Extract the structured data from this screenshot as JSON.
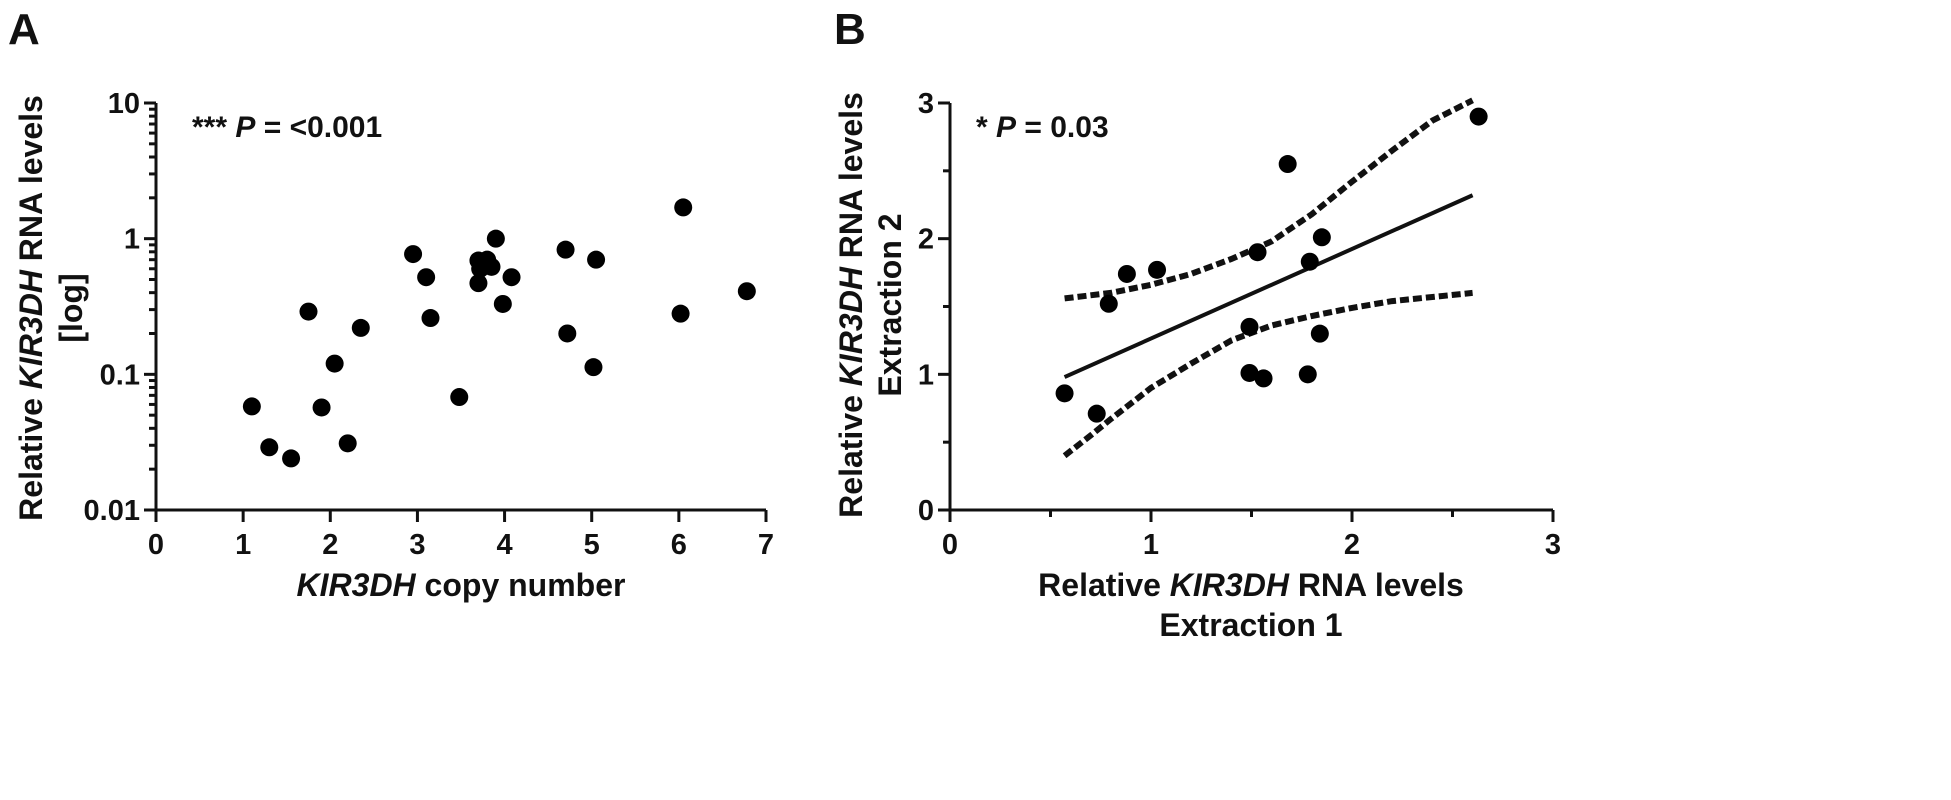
{
  "chart_data": [
    {
      "panel_label": "A",
      "type": "scatter",
      "xlabel": {
        "italic": "KIR3DH",
        "rest": " copy number"
      },
      "ylabel_line1": {
        "pre": "Relative ",
        "italic": "KIR3DH",
        "post": " RNA levels"
      },
      "ylabel_line2": "[log]",
      "x_ticks": [
        "0",
        "1",
        "2",
        "3",
        "4",
        "5",
        "6",
        "7"
      ],
      "y_ticks": [
        "0.01",
        "0.1",
        "1",
        "10"
      ],
      "xlim": [
        0,
        7
      ],
      "ylim": [
        0.01,
        10
      ],
      "y_scale": "log",
      "annotation": {
        "stars": "***",
        "p": "P",
        "rest": " = <0.001"
      },
      "points": [
        {
          "x": 1.1,
          "y": 0.058
        },
        {
          "x": 1.3,
          "y": 0.029
        },
        {
          "x": 1.55,
          "y": 0.024
        },
        {
          "x": 1.75,
          "y": 0.29
        },
        {
          "x": 1.9,
          "y": 0.057
        },
        {
          "x": 2.05,
          "y": 0.12
        },
        {
          "x": 2.2,
          "y": 0.031
        },
        {
          "x": 2.35,
          "y": 0.22
        },
        {
          "x": 2.95,
          "y": 0.77
        },
        {
          "x": 3.1,
          "y": 0.52
        },
        {
          "x": 3.15,
          "y": 0.26
        },
        {
          "x": 3.48,
          "y": 0.068
        },
        {
          "x": 3.7,
          "y": 0.69
        },
        {
          "x": 3.72,
          "y": 0.6
        },
        {
          "x": 3.7,
          "y": 0.47
        },
        {
          "x": 3.8,
          "y": 0.7
        },
        {
          "x": 3.85,
          "y": 0.62
        },
        {
          "x": 3.9,
          "y": 1.0
        },
        {
          "x": 3.98,
          "y": 0.33
        },
        {
          "x": 4.08,
          "y": 0.52
        },
        {
          "x": 4.7,
          "y": 0.83
        },
        {
          "x": 4.72,
          "y": 0.2
        },
        {
          "x": 5.02,
          "y": 0.113
        },
        {
          "x": 5.05,
          "y": 0.7
        },
        {
          "x": 6.02,
          "y": 0.28
        },
        {
          "x": 6.05,
          "y": 1.7
        },
        {
          "x": 6.78,
          "y": 0.41
        }
      ]
    },
    {
      "panel_label": "B",
      "type": "scatter",
      "xlabel_line1": {
        "pre": "Relative ",
        "italic": "KIR3DH",
        "post": " RNA levels"
      },
      "xlabel_line2": "Extraction 1",
      "ylabel_line1": {
        "pre": "Relative ",
        "italic": "KIR3DH",
        "post": " RNA levels"
      },
      "ylabel_line2": "Extraction 2",
      "x_ticks": [
        "0",
        "1",
        "2",
        "3"
      ],
      "y_ticks": [
        "0",
        "1",
        "2",
        "3"
      ],
      "xlim": [
        0,
        3
      ],
      "ylim": [
        0,
        3
      ],
      "y_scale": "linear",
      "annotation": {
        "stars": "*",
        "p": "P",
        "rest": " = 0.03"
      },
      "points": [
        {
          "x": 0.57,
          "y": 0.86
        },
        {
          "x": 0.73,
          "y": 0.71
        },
        {
          "x": 0.79,
          "y": 1.52
        },
        {
          "x": 0.88,
          "y": 1.74
        },
        {
          "x": 1.03,
          "y": 1.77
        },
        {
          "x": 1.49,
          "y": 1.35
        },
        {
          "x": 1.49,
          "y": 1.01
        },
        {
          "x": 1.53,
          "y": 1.9
        },
        {
          "x": 1.56,
          "y": 0.97
        },
        {
          "x": 1.68,
          "y": 2.55
        },
        {
          "x": 1.78,
          "y": 1.0
        },
        {
          "x": 1.79,
          "y": 1.83
        },
        {
          "x": 1.84,
          "y": 1.3
        },
        {
          "x": 1.85,
          "y": 2.01
        },
        {
          "x": 2.63,
          "y": 2.9
        }
      ],
      "regression_line": {
        "x": [
          0.57,
          2.6
        ],
        "y": [
          0.98,
          2.32
        ]
      },
      "ci_upper": {
        "x": [
          0.57,
          0.8,
          1.0,
          1.2,
          1.4,
          1.6,
          1.8,
          2.0,
          2.2,
          2.4,
          2.6
        ],
        "y": [
          1.56,
          1.6,
          1.66,
          1.74,
          1.85,
          1.98,
          2.18,
          2.42,
          2.65,
          2.87,
          3.02
        ]
      },
      "ci_lower": {
        "x": [
          0.57,
          0.7,
          0.8,
          1.0,
          1.2,
          1.4,
          1.6,
          1.8,
          2.0,
          2.2,
          2.4,
          2.6
        ],
        "y": [
          0.4,
          0.55,
          0.67,
          0.9,
          1.08,
          1.25,
          1.36,
          1.43,
          1.49,
          1.54,
          1.57,
          1.6
        ]
      }
    }
  ]
}
